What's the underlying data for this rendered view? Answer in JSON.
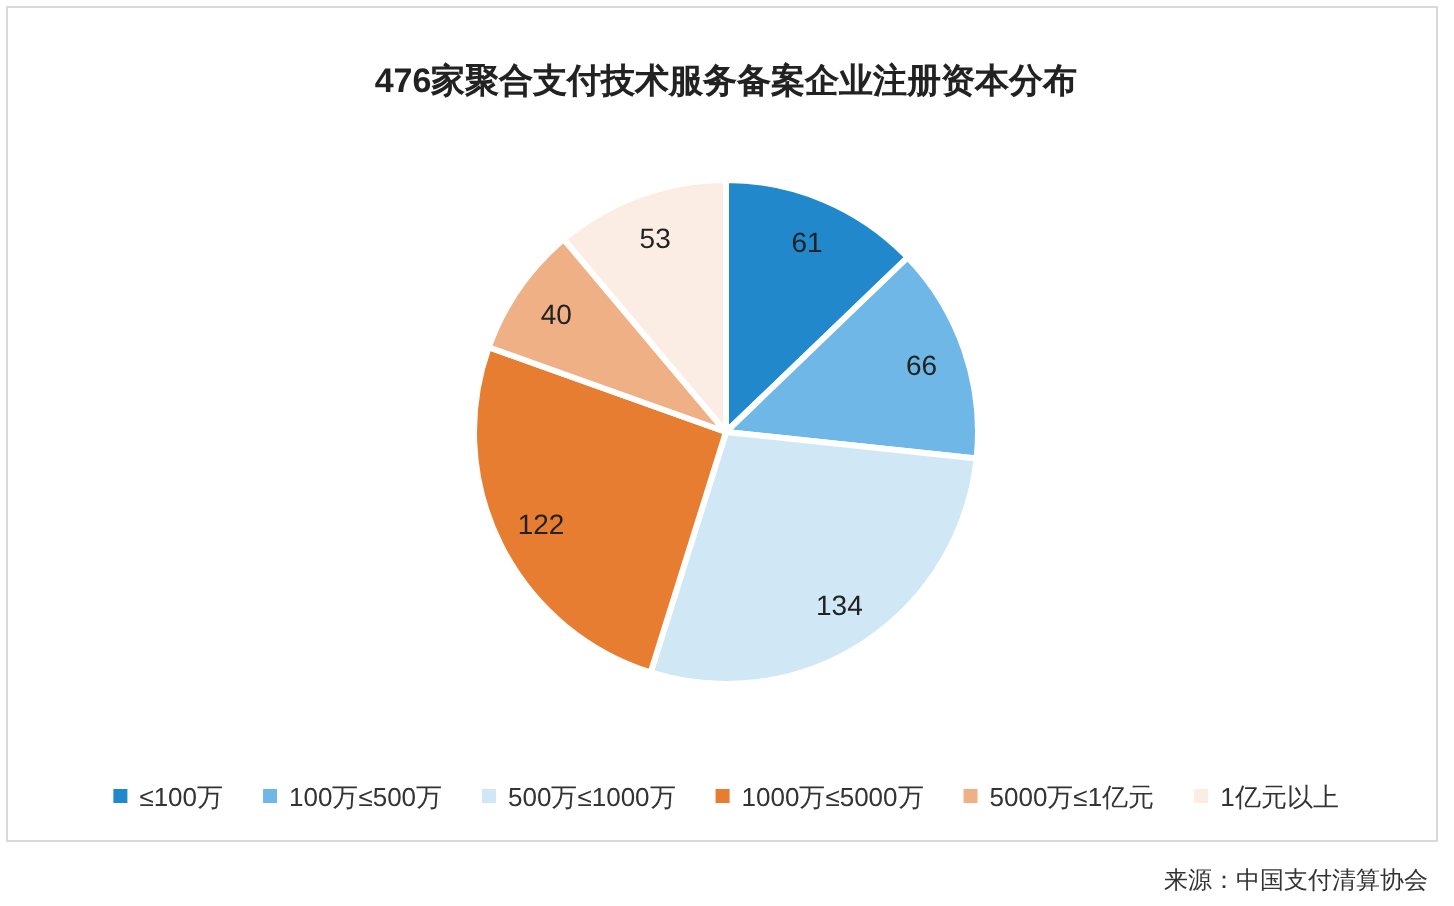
{
  "chart_data": {
    "type": "pie",
    "title": "476家聚合支付技术服务备案企业注册资本分布",
    "categories": [
      "≤100万",
      "100万≤500万",
      "500万≤1000万",
      "1000万≤5000万",
      "5000万≤1亿元",
      "1亿元以上"
    ],
    "values": [
      61,
      66,
      134,
      122,
      40,
      53
    ],
    "colors": [
      "#2188cc",
      "#6eb7e6",
      "#d0e7f6",
      "#e67d31",
      "#f0b085",
      "#fcede4"
    ],
    "data_labels": true,
    "legend": "bottom",
    "annotations": [
      "来源：中国支付清算协会"
    ]
  }
}
